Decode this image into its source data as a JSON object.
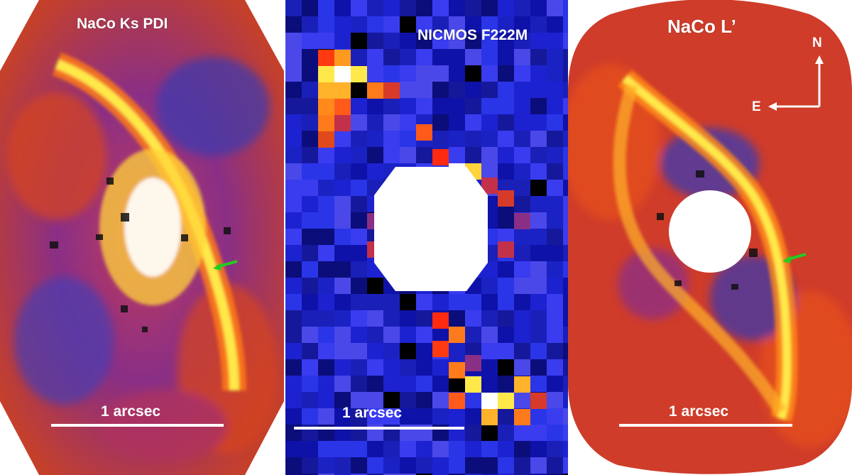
{
  "panels": [
    {
      "title": "NaCo Ks PDI",
      "scale_label": "1 arcsec"
    },
    {
      "title": "NICMOS F222M",
      "scale_label": "1 arcsec"
    },
    {
      "title": "NaCo L’",
      "scale_label": "1 arcsec"
    }
  ],
  "compass": {
    "north": "N",
    "east": "E"
  },
  "colors": {
    "background": "#2b2fa8",
    "ring": "#ffe94a",
    "marker_arrow": "#22cc22",
    "overlay": "#ffffff"
  }
}
